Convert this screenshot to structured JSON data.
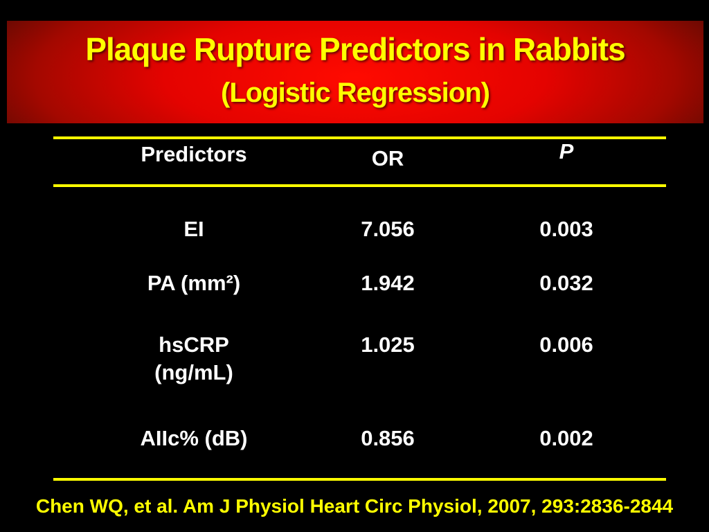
{
  "slide": {
    "title": "Plaque Rupture Predictors in Rabbits",
    "subtitle": "(Logistic Regression)",
    "citation": "Chen WQ, et al. Am J Physiol Heart Circ Physiol, 2007, 293:2836-2844"
  },
  "colors": {
    "background": "#000000",
    "banner_red_center": "#e40300",
    "banner_red_edge": "#170100",
    "title_text": "#ffff00",
    "table_text": "#ffffff",
    "rule": "#ffff00",
    "citation_text": "#ffff00"
  },
  "table": {
    "headers": {
      "predictor": "Predictors",
      "or": "OR",
      "p": "P"
    },
    "rows": [
      {
        "predictor": "EI",
        "or": "7.056",
        "p": "0.003"
      },
      {
        "predictor": "PA (mm²)",
        "or": "1.942",
        "p": "0.032"
      },
      {
        "predictor": "hsCRP\n(ng/mL)",
        "or": "1.025",
        "p": "0.006"
      },
      {
        "predictor": "AIIc% (dB)",
        "or": "0.856",
        "p": "0.002"
      }
    ]
  }
}
